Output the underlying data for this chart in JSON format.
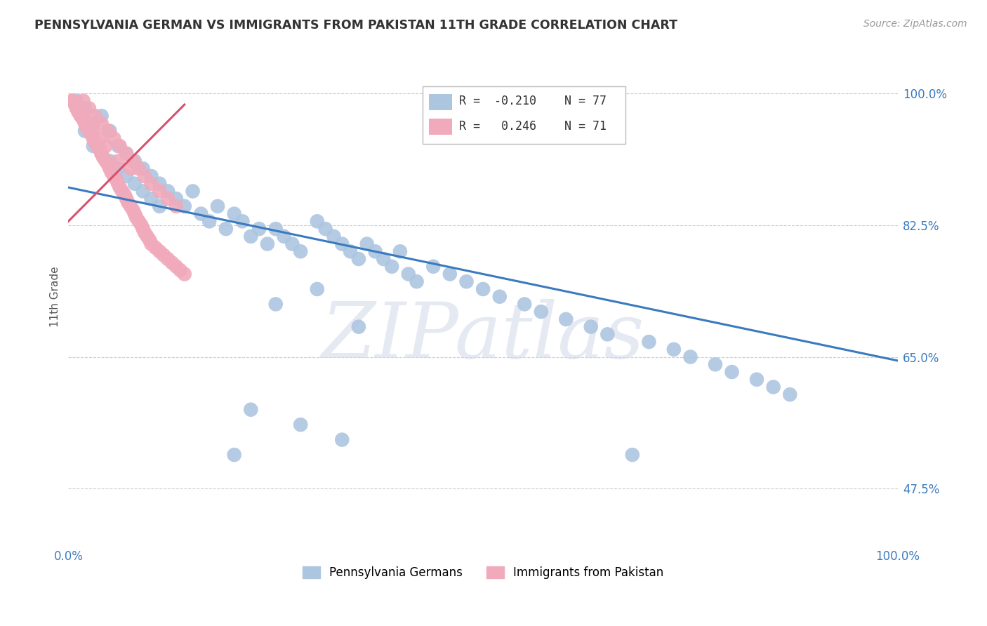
{
  "title": "PENNSYLVANIA GERMAN VS IMMIGRANTS FROM PAKISTAN 11TH GRADE CORRELATION CHART",
  "source": "Source: ZipAtlas.com",
  "ylabel": "11th Grade",
  "watermark": "ZIPatlas",
  "legend": {
    "blue_label": "Pennsylvania Germans",
    "pink_label": "Immigrants from Pakistan",
    "blue_R": "-0.210",
    "blue_N": "77",
    "pink_R": "0.246",
    "pink_N": "71"
  },
  "y_ticks": [
    0.475,
    0.65,
    0.825,
    1.0
  ],
  "y_tick_labels": [
    "47.5%",
    "65.0%",
    "82.5%",
    "100.0%"
  ],
  "blue_color": "#adc6e0",
  "pink_color": "#f0aabb",
  "blue_line_color": "#3a7abf",
  "pink_line_color": "#d94f6e",
  "blue_scatter_x": [
    0.01,
    0.02,
    0.02,
    0.03,
    0.03,
    0.04,
    0.04,
    0.05,
    0.05,
    0.06,
    0.06,
    0.07,
    0.07,
    0.08,
    0.08,
    0.09,
    0.09,
    0.1,
    0.1,
    0.11,
    0.11,
    0.12,
    0.13,
    0.14,
    0.15,
    0.16,
    0.17,
    0.18,
    0.19,
    0.2,
    0.21,
    0.22,
    0.23,
    0.24,
    0.25,
    0.26,
    0.27,
    0.28,
    0.3,
    0.31,
    0.32,
    0.33,
    0.34,
    0.35,
    0.36,
    0.37,
    0.38,
    0.39,
    0.4,
    0.41,
    0.42,
    0.44,
    0.46,
    0.48,
    0.5,
    0.52,
    0.55,
    0.57,
    0.6,
    0.63,
    0.65,
    0.68,
    0.7,
    0.73,
    0.75,
    0.78,
    0.8,
    0.83,
    0.85,
    0.87,
    0.25,
    0.3,
    0.22,
    0.35,
    0.28,
    0.33,
    0.2
  ],
  "blue_scatter_y": [
    0.99,
    0.98,
    0.95,
    0.96,
    0.93,
    0.97,
    0.92,
    0.95,
    0.91,
    0.93,
    0.9,
    0.92,
    0.89,
    0.91,
    0.88,
    0.9,
    0.87,
    0.89,
    0.86,
    0.88,
    0.85,
    0.87,
    0.86,
    0.85,
    0.87,
    0.84,
    0.83,
    0.85,
    0.82,
    0.84,
    0.83,
    0.81,
    0.82,
    0.8,
    0.82,
    0.81,
    0.8,
    0.79,
    0.83,
    0.82,
    0.81,
    0.8,
    0.79,
    0.78,
    0.8,
    0.79,
    0.78,
    0.77,
    0.79,
    0.76,
    0.75,
    0.77,
    0.76,
    0.75,
    0.74,
    0.73,
    0.72,
    0.71,
    0.7,
    0.69,
    0.68,
    0.52,
    0.67,
    0.66,
    0.65,
    0.64,
    0.63,
    0.62,
    0.61,
    0.6,
    0.72,
    0.74,
    0.58,
    0.69,
    0.56,
    0.54,
    0.52
  ],
  "pink_scatter_x": [
    0.005,
    0.008,
    0.01,
    0.012,
    0.015,
    0.018,
    0.02,
    0.022,
    0.025,
    0.028,
    0.03,
    0.032,
    0.035,
    0.038,
    0.04,
    0.042,
    0.045,
    0.048,
    0.05,
    0.052,
    0.055,
    0.058,
    0.06,
    0.062,
    0.065,
    0.068,
    0.07,
    0.072,
    0.075,
    0.078,
    0.08,
    0.082,
    0.085,
    0.088,
    0.09,
    0.092,
    0.095,
    0.098,
    0.1,
    0.105,
    0.11,
    0.115,
    0.12,
    0.125,
    0.13,
    0.135,
    0.14,
    0.018,
    0.025,
    0.032,
    0.04,
    0.048,
    0.055,
    0.062,
    0.07,
    0.078,
    0.085,
    0.092,
    0.1,
    0.11,
    0.12,
    0.13,
    0.005,
    0.01,
    0.015,
    0.022,
    0.03,
    0.038,
    0.045,
    0.06,
    0.075
  ],
  "pink_scatter_y": [
    0.99,
    0.985,
    0.98,
    0.975,
    0.97,
    0.965,
    0.96,
    0.955,
    0.95,
    0.945,
    0.94,
    0.935,
    0.93,
    0.925,
    0.92,
    0.915,
    0.91,
    0.905,
    0.9,
    0.895,
    0.89,
    0.885,
    0.88,
    0.875,
    0.87,
    0.865,
    0.86,
    0.855,
    0.85,
    0.845,
    0.84,
    0.835,
    0.83,
    0.825,
    0.82,
    0.815,
    0.81,
    0.805,
    0.8,
    0.795,
    0.79,
    0.785,
    0.78,
    0.775,
    0.77,
    0.765,
    0.76,
    0.99,
    0.98,
    0.97,
    0.96,
    0.95,
    0.94,
    0.93,
    0.92,
    0.91,
    0.9,
    0.89,
    0.88,
    0.87,
    0.86,
    0.85,
    0.99,
    0.98,
    0.97,
    0.96,
    0.95,
    0.94,
    0.93,
    0.91,
    0.9
  ],
  "blue_trend_x": [
    0.0,
    1.0
  ],
  "blue_trend_y": [
    0.875,
    0.645
  ],
  "pink_trend_x": [
    0.0,
    0.14
  ],
  "pink_trend_y": [
    0.83,
    0.985
  ],
  "xlim": [
    0.0,
    1.0
  ],
  "ylim": [
    0.4,
    1.06
  ]
}
